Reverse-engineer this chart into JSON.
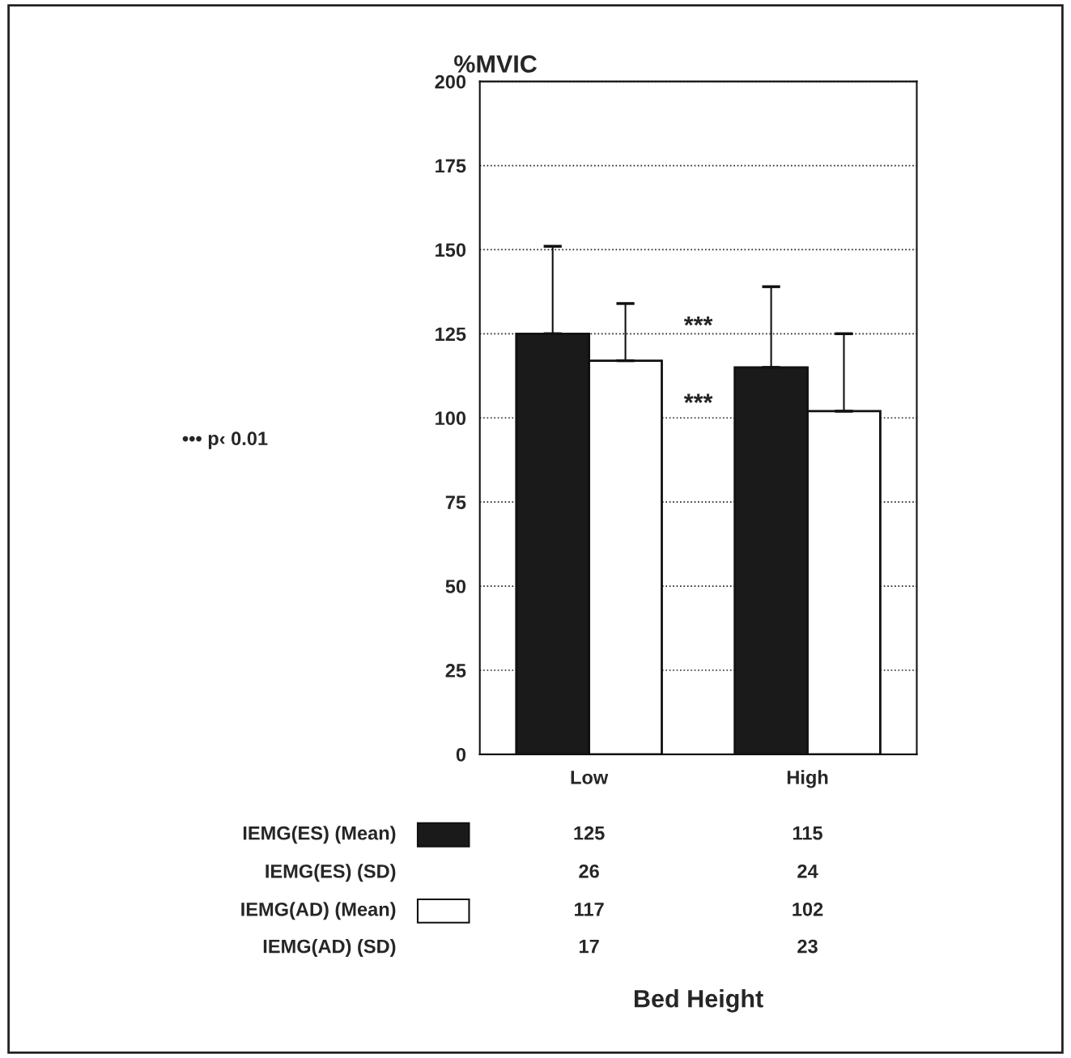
{
  "chart_data": {
    "type": "bar",
    "ylabel": "%MVIC",
    "legend": "bottom left",
    "categories": [
      "Low",
      "High"
    ],
    "series": [
      {
        "name": "IEMG(ES) (Mean)",
        "color": "#1a1a1a",
        "values": [
          125,
          115
        ],
        "errors": [
          26,
          24
        ]
      },
      {
        "name": "IEMG(AD) (Mean)",
        "color": "#ffffff",
        "values": [
          117,
          102
        ],
        "errors": [
          17,
          23
        ]
      }
    ],
    "ylim": [
      0,
      200
    ],
    "yticks": [
      0,
      25,
      50,
      75,
      100,
      125,
      150,
      175,
      200
    ],
    "grid": "y",
    "line_style": "dotted",
    "data_labels": true,
    "annotations": [
      "••• p‹ 0.01",
      "***",
      "***",
      "IEMG(ES) (SD)",
      "IEMG(AD) (SD)",
      "Bed Height",
      "26",
      "24",
      "17",
      "23"
    ]
  }
}
